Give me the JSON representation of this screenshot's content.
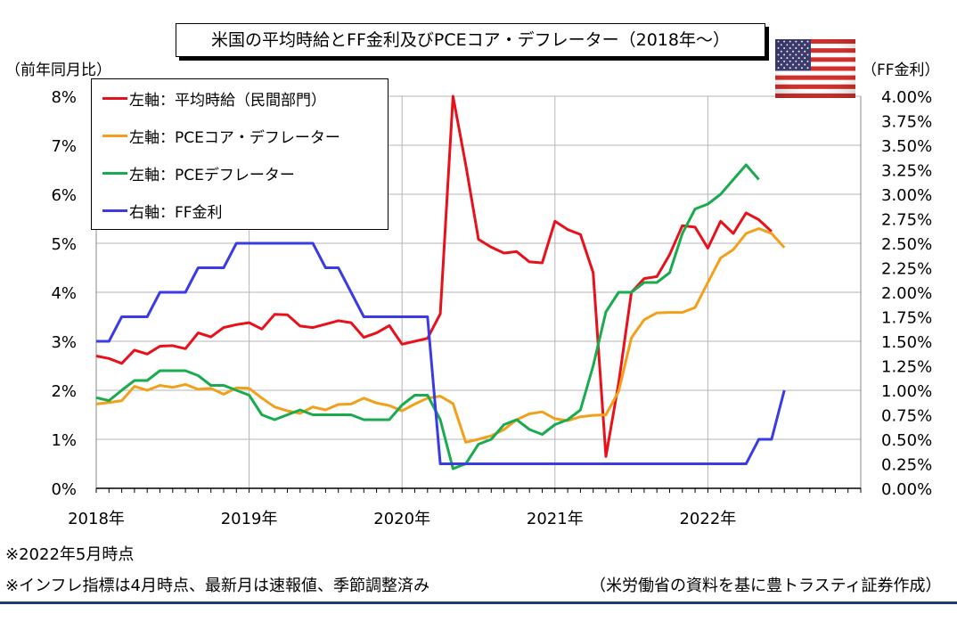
{
  "title": "米国の平均時給とFF金利及びPCEコア・デフレーター（2018年～）",
  "notes": {
    "note1": "※2022年5月時点",
    "note2": "※インフレ指標は4月時点、最新月は速報値、季節調整済み",
    "source": "（米労働省の資料を基に豊トラスティ証券作成）"
  },
  "flag": {
    "name": "us-flag-icon",
    "colors": {
      "red": "#d0312d",
      "white": "#ffffff",
      "blue": "#3c3b6e"
    }
  },
  "chart_data": {
    "type": "line",
    "y_left_label": "（前年同月比）",
    "y_right_label": "（FF金利）",
    "y_left_ticks": [
      "0%",
      "1%",
      "2%",
      "3%",
      "4%",
      "5%",
      "6%",
      "7%",
      "8%"
    ],
    "y_right_ticks": [
      "0.00%",
      "0.25%",
      "0.50%",
      "0.75%",
      "1.00%",
      "1.25%",
      "1.50%",
      "1.75%",
      "2.00%",
      "2.25%",
      "2.50%",
      "2.75%",
      "3.00%",
      "3.25%",
      "3.50%",
      "3.75%",
      "4.00%"
    ],
    "ylim_left": [
      0,
      8
    ],
    "ylim_right": [
      0,
      4
    ],
    "x_ticks": [
      "2018年",
      "2019年",
      "2020年",
      "2021年",
      "2022年"
    ],
    "x_start": "2018-01",
    "months_total": 60,
    "grid": true,
    "legend_position": "top-left",
    "series": [
      {
        "name": "左軸：平均時給（民間部門）",
        "axis": "left",
        "color": "#e8101a",
        "values": [
          2.7,
          2.65,
          2.55,
          2.82,
          2.74,
          2.9,
          2.91,
          2.85,
          3.17,
          3.09,
          3.28,
          3.34,
          3.38,
          3.25,
          3.55,
          3.54,
          3.31,
          3.28,
          3.35,
          3.42,
          3.38,
          3.08,
          3.17,
          3.32,
          2.94,
          3.0,
          3.06,
          3.56,
          8.0,
          6.6,
          5.08,
          4.92,
          4.8,
          4.83,
          4.62,
          4.6,
          5.45,
          5.28,
          5.18,
          4.4,
          0.65,
          2.15,
          4.0,
          4.28,
          4.32,
          4.77,
          5.36,
          5.33,
          4.9,
          5.45,
          5.2,
          5.62,
          5.48,
          5.24
        ]
      },
      {
        "name": "左軸：PCEコア・デフレーター",
        "axis": "left",
        "color": "#f2a019",
        "values": [
          1.72,
          1.75,
          1.79,
          2.08,
          2.0,
          2.1,
          2.06,
          2.12,
          2.02,
          2.04,
          1.92,
          2.05,
          2.04,
          1.84,
          1.66,
          1.58,
          1.53,
          1.66,
          1.6,
          1.71,
          1.72,
          1.84,
          1.74,
          1.69,
          1.58,
          1.72,
          1.84,
          1.88,
          1.73,
          0.94,
          1.0,
          1.07,
          1.2,
          1.4,
          1.52,
          1.56,
          1.42,
          1.38,
          1.46,
          1.49,
          1.5,
          1.98,
          3.07,
          3.44,
          3.58,
          3.59,
          3.59,
          3.69,
          4.2,
          4.7,
          4.87,
          5.2,
          5.3,
          5.2,
          4.91
        ]
      },
      {
        "name": "左軸：PCEデフレーター",
        "axis": "left",
        "color": "#1aab4e",
        "values": [
          1.85,
          1.79,
          2.0,
          2.2,
          2.2,
          2.4,
          2.4,
          2.4,
          2.3,
          2.1,
          2.1,
          2.0,
          1.9,
          1.5,
          1.4,
          1.5,
          1.6,
          1.5,
          1.5,
          1.5,
          1.5,
          1.4,
          1.4,
          1.4,
          1.7,
          1.9,
          1.9,
          1.4,
          0.4,
          0.5,
          0.9,
          1.0,
          1.3,
          1.4,
          1.2,
          1.1,
          1.3,
          1.4,
          1.6,
          2.5,
          3.6,
          4.0,
          4.0,
          4.2,
          4.2,
          4.4,
          5.2,
          5.7,
          5.8,
          6.0,
          6.3,
          6.6,
          6.3
        ]
      },
      {
        "name": "右軸：FF金利",
        "axis": "right",
        "color": "#3b3be6",
        "values": [
          1.5,
          1.5,
          1.75,
          1.75,
          1.75,
          2.0,
          2.0,
          2.0,
          2.25,
          2.25,
          2.25,
          2.5,
          2.5,
          2.5,
          2.5,
          2.5,
          2.5,
          2.5,
          2.25,
          2.25,
          2.0,
          1.75,
          1.75,
          1.75,
          1.75,
          1.75,
          1.75,
          0.25,
          0.25,
          0.25,
          0.25,
          0.25,
          0.25,
          0.25,
          0.25,
          0.25,
          0.25,
          0.25,
          0.25,
          0.25,
          0.25,
          0.25,
          0.25,
          0.25,
          0.25,
          0.25,
          0.25,
          0.25,
          0.25,
          0.25,
          0.25,
          0.25,
          0.5,
          0.5,
          1.0
        ]
      }
    ]
  }
}
